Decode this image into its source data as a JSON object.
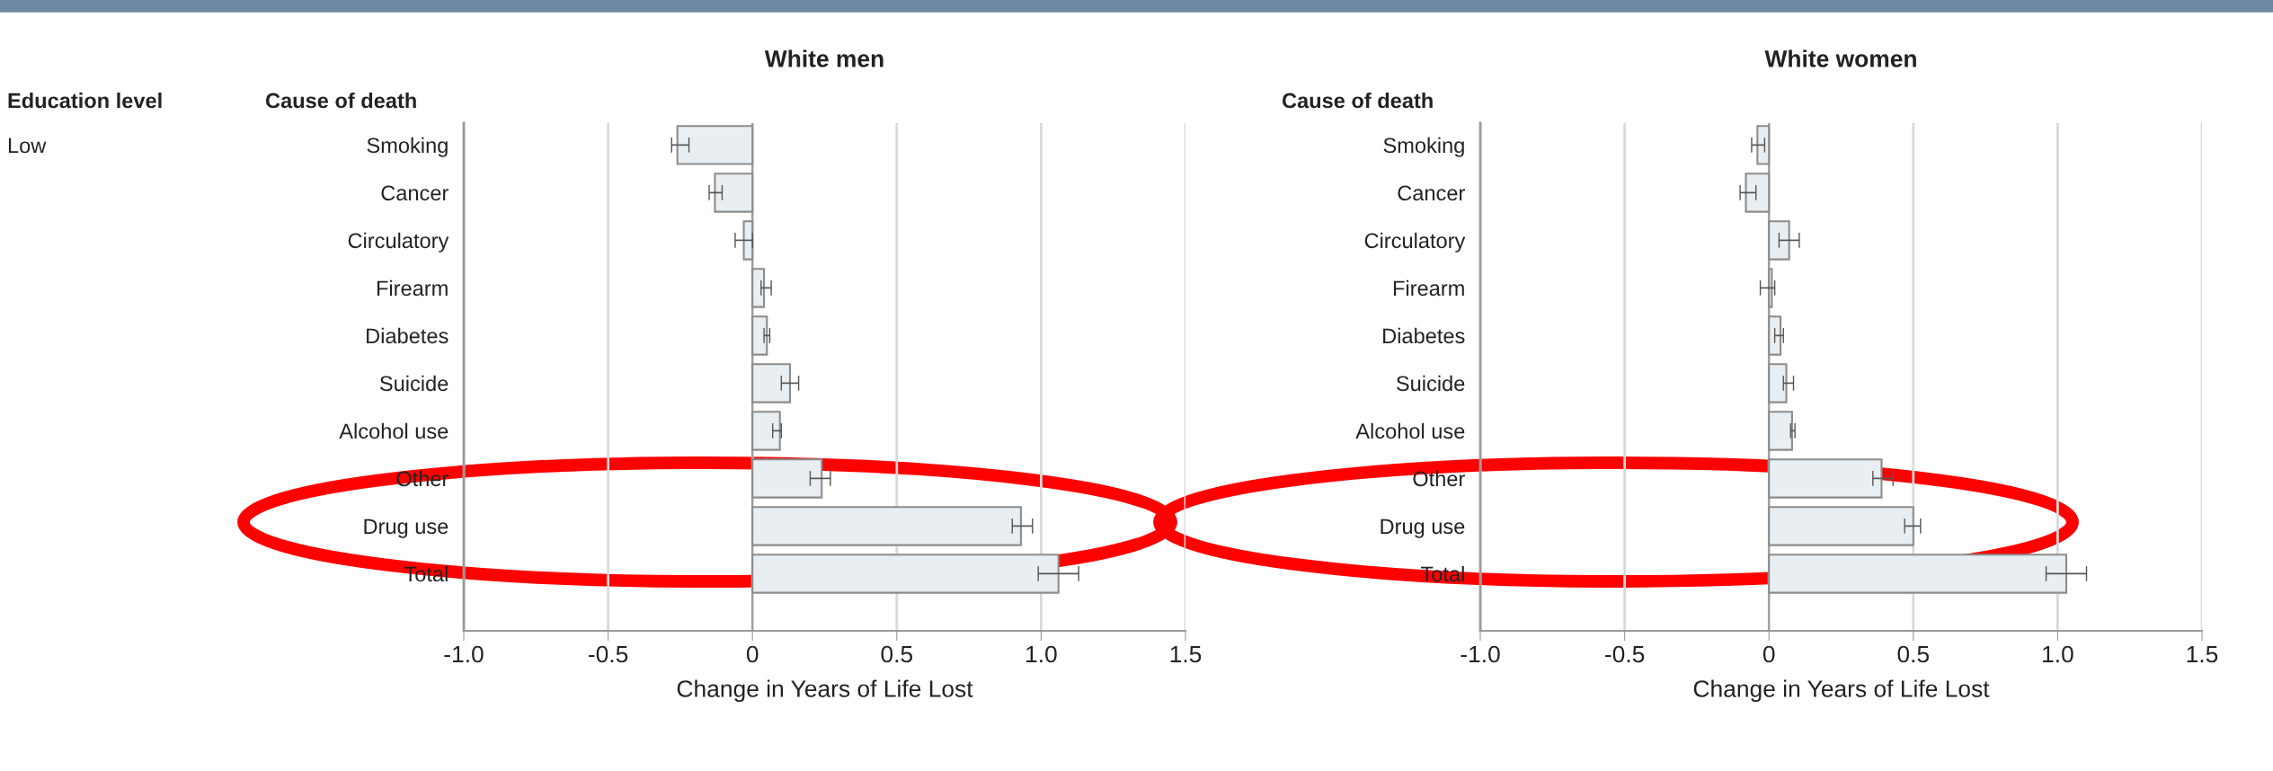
{
  "chart_data": [
    {
      "type": "bar",
      "orientation": "horizontal",
      "title": "White men",
      "xlabel": "Change in Years of Life Lost",
      "annotations": [
        "Education level",
        "Low",
        "Cause of death"
      ],
      "categories": [
        "Smoking",
        "Cancer",
        "Circulatory",
        "Firearm",
        "Diabetes",
        "Suicide",
        "Alcohol use",
        "Other",
        "Drug use",
        "Total"
      ],
      "values": [
        -0.26,
        -0.13,
        -0.03,
        0.04,
        0.05,
        0.13,
        0.095,
        0.24,
        0.93,
        1.06
      ],
      "errors": [
        [
          -0.28,
          -0.22
        ],
        [
          -0.15,
          -0.105
        ],
        [
          -0.06,
          0.0
        ],
        [
          0.03,
          0.065
        ],
        [
          0.04,
          0.06
        ],
        [
          0.1,
          0.16
        ],
        [
          0.07,
          0.1
        ],
        [
          0.2,
          0.27
        ],
        [
          0.9,
          0.97
        ],
        [
          0.99,
          1.13
        ]
      ],
      "color": "#e8eef2",
      "xlim": [
        -1.0,
        1.5
      ],
      "xticks": [
        {
          "value": -1.0,
          "label": "-1.0"
        },
        {
          "value": -0.5,
          "label": "-0.5"
        },
        {
          "value": 0,
          "label": "0"
        },
        {
          "value": 0.5,
          "label": "0.5"
        },
        {
          "value": 1.0,
          "label": "1.0"
        },
        {
          "value": 1.5,
          "label": "1.5"
        }
      ],
      "grid": "x"
    },
    {
      "type": "bar",
      "orientation": "horizontal",
      "title": "White women",
      "xlabel": "Change in Years of Life Lost",
      "annotations": [
        "Cause of death"
      ],
      "categories": [
        "Smoking",
        "Cancer",
        "Circulatory",
        "Firearm",
        "Diabetes",
        "Suicide",
        "Alcohol use",
        "Other",
        "Drug use",
        "Total"
      ],
      "values": [
        -0.04,
        -0.08,
        0.07,
        0.01,
        0.04,
        0.06,
        0.08,
        0.39,
        0.5,
        1.03
      ],
      "errors": [
        [
          -0.06,
          -0.015
        ],
        [
          -0.1,
          -0.045
        ],
        [
          0.035,
          0.105
        ],
        [
          -0.03,
          0.02
        ],
        [
          0.02,
          0.05
        ],
        [
          0.05,
          0.085
        ],
        [
          0.075,
          0.09
        ],
        [
          0.36,
          0.43
        ],
        [
          0.47,
          0.525
        ],
        [
          0.96,
          1.1
        ]
      ],
      "color": "#e8eef2",
      "xlim": [
        -1.0,
        1.5
      ],
      "xticks": [
        {
          "value": -1.0,
          "label": "-1.0"
        },
        {
          "value": -0.5,
          "label": "-0.5"
        },
        {
          "value": 0,
          "label": "0"
        },
        {
          "value": 0.5,
          "label": "0.5"
        },
        {
          "value": 1.0,
          "label": "1.0"
        },
        {
          "value": 1.5,
          "label": "1.5"
        }
      ],
      "grid": "x"
    }
  ]
}
